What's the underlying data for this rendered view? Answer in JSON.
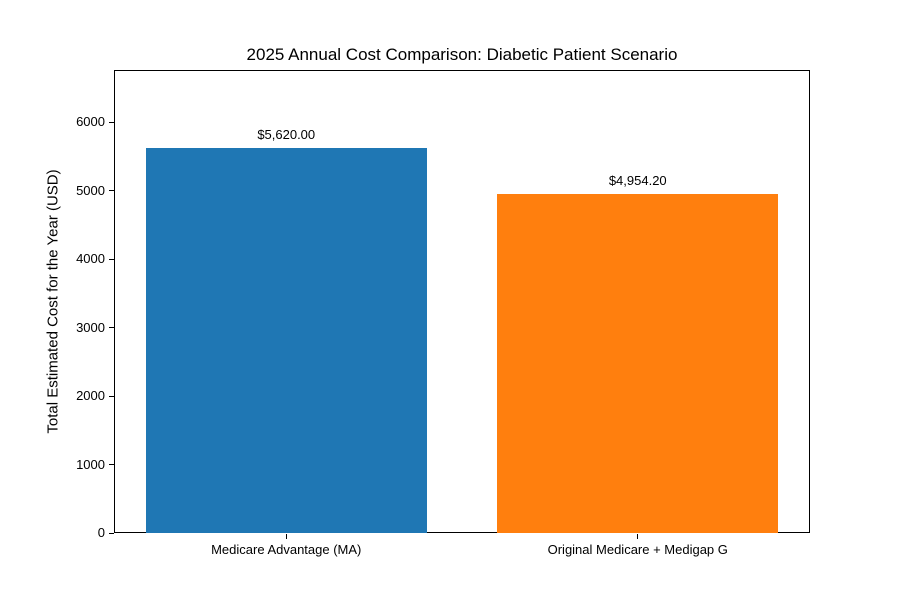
{
  "figure": {
    "background": "#ffffff",
    "spine_color": "#000000",
    "text_color": "#000000"
  },
  "chart_data": {
    "type": "bar",
    "title": "2025 Annual Cost Comparison: Diabetic Patient Scenario",
    "xlabel": "",
    "ylabel": "Total Estimated Cost for the Year (USD)",
    "categories": [
      "Medicare Advantage (MA)",
      "Original Medicare + Medigap G"
    ],
    "values": [
      5620.0,
      4954.2
    ],
    "value_labels": [
      "$5,620.00",
      "$4,954.20"
    ],
    "bar_colors": [
      "#1f77b4",
      "#ff7f0e"
    ],
    "yticks": [
      0,
      1000,
      2000,
      3000,
      4000,
      5000,
      6000
    ],
    "ylim": [
      0,
      6760
    ],
    "bar_width_fraction": 0.8,
    "grid": false,
    "legend": null
  }
}
